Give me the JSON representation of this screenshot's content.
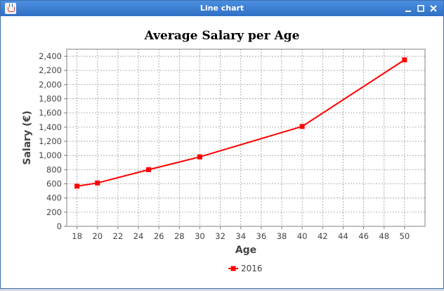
{
  "window": {
    "title": "Line chart",
    "icon": "java-cup-icon",
    "controls": [
      "minimize-icon",
      "maximize-icon",
      "close-icon"
    ]
  },
  "colors": {
    "titlebar": "#3b7dd8",
    "series": "#ff0000",
    "grid": "#999999",
    "plot_border": "#808080"
  },
  "chart_data": {
    "type": "line",
    "title": "Average Salary per Age",
    "xlabel": "Age",
    "ylabel": "Salary (€)",
    "xlim": [
      17,
      52
    ],
    "ylim": [
      0,
      2500
    ],
    "x_ticks": [
      "18",
      "20",
      "22",
      "24",
      "26",
      "28",
      "30",
      "32",
      "34",
      "36",
      "38",
      "40",
      "42",
      "44",
      "46",
      "48",
      "50"
    ],
    "y_ticks": [
      "0",
      "200",
      "400",
      "600",
      "800",
      "1,000",
      "1,200",
      "1,400",
      "1,600",
      "1,800",
      "2,000",
      "2,200",
      "2,400"
    ],
    "grid": true,
    "legend": "bottom-center",
    "series": [
      {
        "name": "2016",
        "color": "#ff0000",
        "x": [
          18,
          20,
          25,
          30,
          40,
          50
        ],
        "y": [
          567,
          612,
          800,
          980,
          1410,
          2350
        ]
      }
    ]
  }
}
